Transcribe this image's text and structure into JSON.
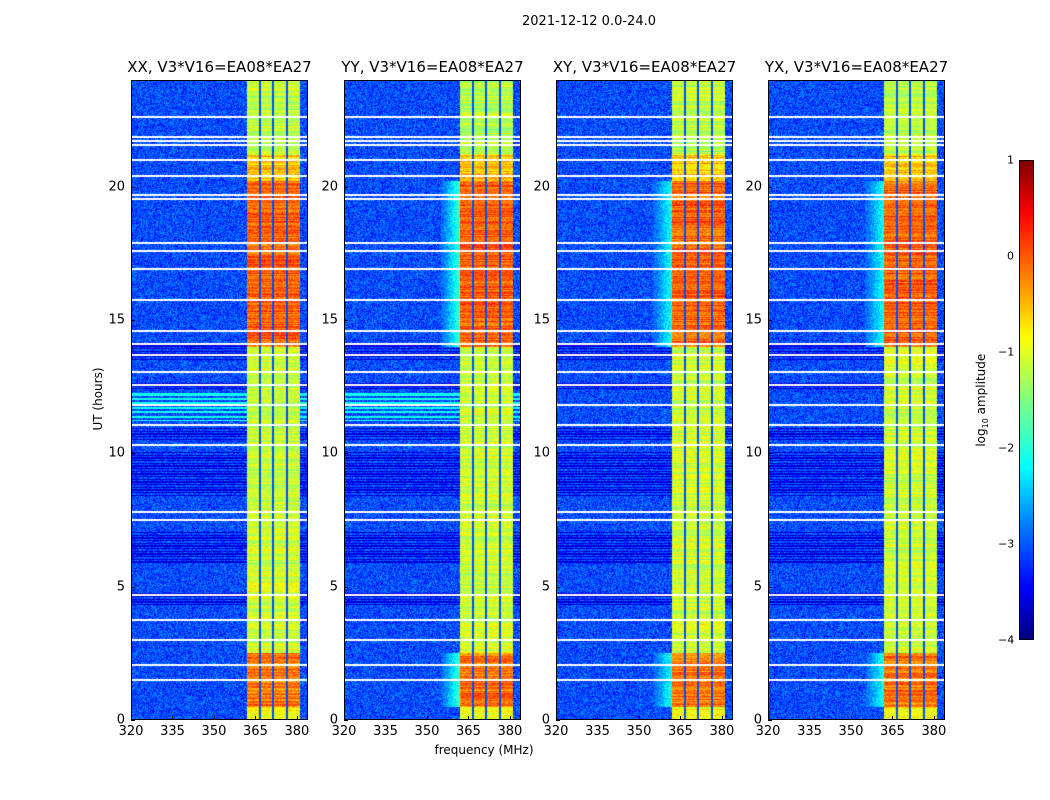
{
  "suptitle": "2021-12-12 0.0-24.0",
  "chart_data": {
    "type": "heatmap",
    "title": "2021-12-12 0.0-24.0",
    "xlabel": "frequency (MHz)",
    "ylabel": "UT (hours)",
    "xlim": [
      320,
      384
    ],
    "ylim": [
      0,
      24
    ],
    "xticks": [
      "320",
      "335",
      "350",
      "365",
      "380"
    ],
    "yticks": [
      "0",
      "5",
      "10",
      "15",
      "20"
    ],
    "colormap": "jet",
    "colorbar": {
      "label_main": "log",
      "label_sub": "10",
      "label_rest": " amplitude",
      "range": [
        -4,
        1
      ],
      "ticks": [
        "1",
        "0",
        "−1",
        "−2",
        "−3",
        "−4"
      ]
    },
    "panels": [
      {
        "title": "XX, V3*V16=EA08*EA27",
        "glow": 0.0
      },
      {
        "title": "YY, V3*V16=EA08*EA27",
        "glow": 0.6
      },
      {
        "title": "XY, V3*V16=EA08*EA27",
        "glow": 0.5
      },
      {
        "title": "YX, V3*V16=EA08*EA27",
        "glow": 0.5
      }
    ],
    "background_level": -3.0,
    "signal_band_mhz": [
      362,
      381
    ],
    "channel_gaps_mhz": [
      366.5,
      371.5,
      376.5
    ],
    "band_levels": [
      {
        "t": [
          0,
          0.5
        ],
        "level": -0.9
      },
      {
        "t": [
          0.5,
          2.5
        ],
        "level": -0.2
      },
      {
        "t": [
          2.5,
          14
        ],
        "level": -1.1
      },
      {
        "t": [
          14,
          20.2
        ],
        "level": -0.1
      },
      {
        "t": [
          20.2,
          21.2
        ],
        "level": -0.6
      },
      {
        "t": [
          21.2,
          24
        ],
        "level": -1.2
      }
    ],
    "dark_time_ranges": [
      [
        5.9,
        7.1
      ],
      [
        8.4,
        10.1
      ],
      [
        10.5,
        11.0
      ],
      [
        12.4,
        12.7
      ],
      [
        13.5,
        14.1
      ],
      [
        4.3,
        4.8
      ]
    ],
    "enhanced_time_ranges": [
      [
        11.2,
        12.3
      ]
    ],
    "flagged_times": [
      22.6,
      21.55,
      21.7,
      21.85,
      21.0,
      20.4,
      19.55,
      19.7,
      17.9,
      17.6,
      16.9,
      15.75,
      14.6,
      14.1,
      13.7,
      13.05,
      12.55,
      11.8,
      11.05,
      10.3,
      7.8,
      7.5,
      4.7,
      3.75,
      3.0,
      2.05,
      1.5
    ]
  }
}
